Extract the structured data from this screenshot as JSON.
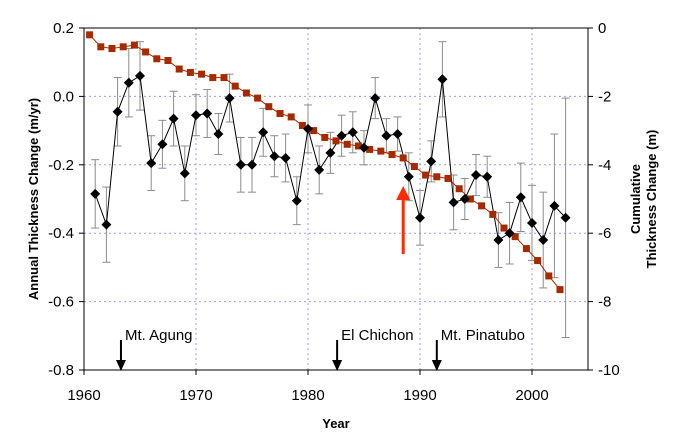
{
  "chart_data": {
    "type": "line",
    "title": "",
    "xlabel": "Year",
    "ylabel_left": "Annual Thickness Change (m/yr)",
    "ylabel_right": "Cumulative Thickness Change (m)",
    "xlim": [
      1960,
      2005
    ],
    "ylim_left": [
      -0.8,
      0.2
    ],
    "ylim_right": [
      -10,
      0
    ],
    "x_ticks": [
      1960,
      1970,
      1980,
      1990,
      2000
    ],
    "x_tick_labels": [
      "1960",
      "1970",
      "1980",
      "1990",
      "2000"
    ],
    "y_left_ticks": [
      0.2,
      0.0,
      -0.2,
      -0.4,
      -0.6,
      -0.8
    ],
    "y_left_tick_labels": [
      "0.2",
      "0.0",
      "-0.2",
      "-0.4",
      "-0.6",
      "-0.8"
    ],
    "y_right_ticks": [
      0,
      -2,
      -4,
      -6,
      -8,
      -10
    ],
    "y_right_tick_labels": [
      "0",
      "-2",
      "-4",
      "-6",
      "-8",
      "-10"
    ],
    "grid": true,
    "colors": {
      "annual": "#000000",
      "cumulative": "#a52a00",
      "error_bars": "#8c8c8c",
      "grid": "#9999ff",
      "arrow": "#ff2a00"
    },
    "series": [
      {
        "axis": "left",
        "marker": "diamond",
        "x": [
          1961,
          1962,
          1963,
          1964,
          1965,
          1966,
          1967,
          1968,
          1969,
          1970,
          1971,
          1972,
          1973,
          1974,
          1975,
          1976,
          1977,
          1978,
          1979,
          1980,
          1981,
          1982,
          1983,
          1984,
          1985,
          1986,
          1987,
          1988,
          1989,
          1990,
          1991,
          1992,
          1993,
          1994,
          1995,
          1996,
          1997,
          1998,
          1999,
          2000,
          2001,
          2002,
          2003
        ],
        "y": [
          -0.285,
          -0.375,
          -0.045,
          0.04,
          0.06,
          -0.195,
          -0.14,
          -0.065,
          -0.225,
          -0.055,
          -0.05,
          -0.11,
          -0.005,
          -0.2,
          -0.2,
          -0.105,
          -0.175,
          -0.18,
          -0.305,
          -0.095,
          -0.215,
          -0.165,
          -0.115,
          -0.105,
          -0.15,
          -0.005,
          -0.115,
          -0.11,
          -0.235,
          -0.355,
          -0.19,
          0.05,
          -0.31,
          -0.3,
          -0.23,
          -0.235,
          -0.42,
          -0.4,
          -0.295,
          -0.37,
          -0.42,
          -0.32,
          -0.355
        ],
        "err": [
          0.1,
          0.11,
          0.1,
          0.1,
          0.1,
          0.08,
          0.07,
          0.08,
          0.08,
          0.06,
          0.07,
          0.06,
          0.07,
          0.08,
          0.08,
          0.07,
          0.06,
          0.07,
          0.07,
          0.07,
          0.07,
          0.06,
          0.06,
          0.06,
          0.05,
          0.06,
          0.05,
          0.05,
          0.07,
          0.08,
          0.06,
          0.11,
          0.08,
          0.06,
          0.06,
          0.06,
          0.08,
          0.09,
          0.1,
          0.11,
          0.14,
          0.21,
          0.35
        ]
      },
      {
        "axis": "right",
        "marker": "square",
        "x": [
          1960.5,
          1961.5,
          1962.5,
          1963.5,
          1964.5,
          1965.5,
          1966.5,
          1967.5,
          1968.5,
          1969.5,
          1970.5,
          1971.5,
          1972.5,
          1973.5,
          1974.5,
          1975.5,
          1976.5,
          1977.5,
          1978.5,
          1979.5,
          1980.5,
          1981.5,
          1982.5,
          1983.5,
          1984.5,
          1985.5,
          1986.5,
          1987.5,
          1988.5,
          1989.5,
          1990.5,
          1991.5,
          1992.5,
          1993.5,
          1994.5,
          1995.5,
          1996.5,
          1997.5,
          1998.5,
          1999.5,
          2000.5,
          2001.5,
          2002.5
        ],
        "y": [
          -0.2,
          -0.55,
          -0.6,
          -0.55,
          -0.5,
          -0.7,
          -0.9,
          -0.95,
          -1.2,
          -1.3,
          -1.35,
          -1.45,
          -1.45,
          -1.7,
          -1.9,
          -2.05,
          -2.3,
          -2.5,
          -2.6,
          -2.85,
          -3.0,
          -3.2,
          -3.3,
          -3.4,
          -3.45,
          -3.55,
          -3.6,
          -3.7,
          -3.8,
          -4.05,
          -4.3,
          -4.35,
          -4.4,
          -4.7,
          -5.0,
          -5.2,
          -5.45,
          -5.85,
          -6.1,
          -6.45,
          -6.8,
          -7.25,
          -7.65
        ]
      }
    ],
    "annotations": [
      {
        "label": "Mt. Agung",
        "x": 1963.3
      },
      {
        "label": "El Chichon",
        "x": 1982.6
      },
      {
        "label": "Mt. Pinatubo",
        "x": 1991.5
      }
    ],
    "highlight_arrow_x": 1988.5
  }
}
